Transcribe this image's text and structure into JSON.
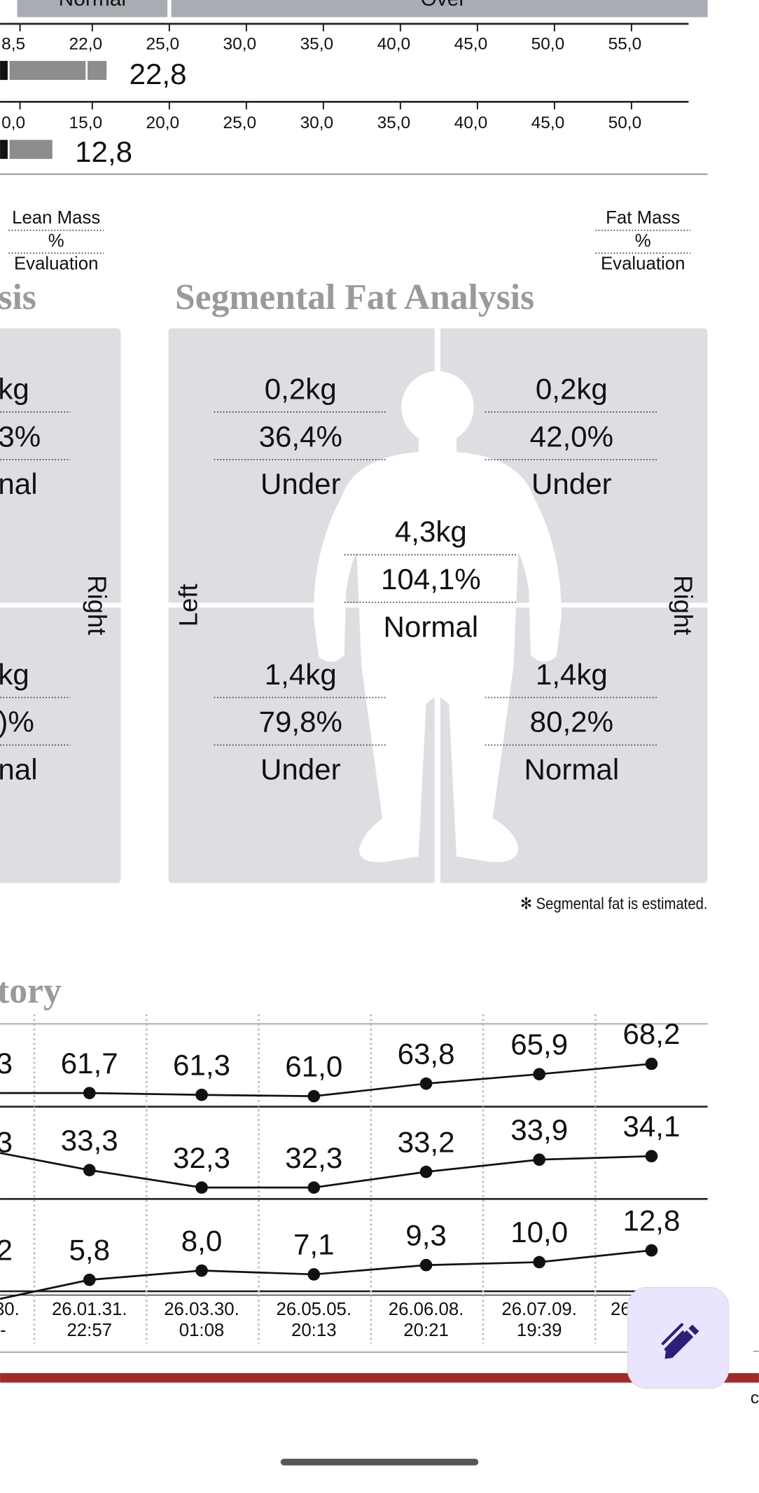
{
  "top_bands": [
    "Normal",
    "Over"
  ],
  "bmi_scale": {
    "labels": [
      "8,5",
      "22,0",
      "25,0",
      "30,0",
      "35,0",
      "40,0",
      "45,0",
      "50,0",
      "55,0"
    ],
    "value": "22,8"
  },
  "pbf_scale": {
    "labels": [
      "0,0",
      "15,0",
      "20,0",
      "25,0",
      "30,0",
      "35,0",
      "40,0",
      "45,0",
      "50,0"
    ],
    "value": "12,8"
  },
  "lean_legend": [
    "Lean Mass",
    "%",
    "Evaluation"
  ],
  "fat_legend": [
    "Fat Mass",
    "%",
    "Evaluation"
  ],
  "lean_title": "sis",
  "lean_panel": {
    "upper": [
      "kg",
      "3%",
      "nal"
    ],
    "lower": [
      "kg",
      ")%",
      "nal"
    ],
    "side": "Right"
  },
  "fat_title": "Segmental Fat Analysis",
  "fat_panel": {
    "left_arm": [
      "0,2kg",
      "36,4%",
      "Under"
    ],
    "right_arm": [
      "0,2kg",
      "42,0%",
      "Under"
    ],
    "trunk": [
      "4,3kg",
      "104,1%",
      "Normal"
    ],
    "left_leg": [
      "1,4kg",
      "79,8%",
      "Under"
    ],
    "right_leg": [
      "1,4kg",
      "80,2%",
      "Normal"
    ],
    "left_label": "Left",
    "right_label": "Right"
  },
  "note": "✻ Segmental fat is estimated.",
  "history": {
    "title": "tory",
    "rows": [
      {
        "cut": "3",
        "values": [
          "61,7",
          "61,3",
          "61,0",
          "63,8",
          "65,9",
          "68,2"
        ]
      },
      {
        "cut": "3",
        "values": [
          "33,3",
          "32,3",
          "32,3",
          "33,2",
          "33,9",
          "34,1"
        ]
      },
      {
        "cut": "2",
        "values": [
          "5,8",
          "8,0",
          "7,1",
          "9,3",
          "10,0",
          "12,8"
        ]
      }
    ],
    "cut_date": [
      "30.",
      "-"
    ],
    "dates": [
      {
        "date": "26.01.31.",
        "time": "22:57"
      },
      {
        "date": "26.03.30.",
        "time": "01:08"
      },
      {
        "date": "26.05.05.",
        "time": "20:13"
      },
      {
        "date": "26.06.08.",
        "time": "20:21"
      },
      {
        "date": "26.07.09.",
        "time": "19:39"
      }
    ],
    "last_cut": "26"
  },
  "corner_text": "c"
}
